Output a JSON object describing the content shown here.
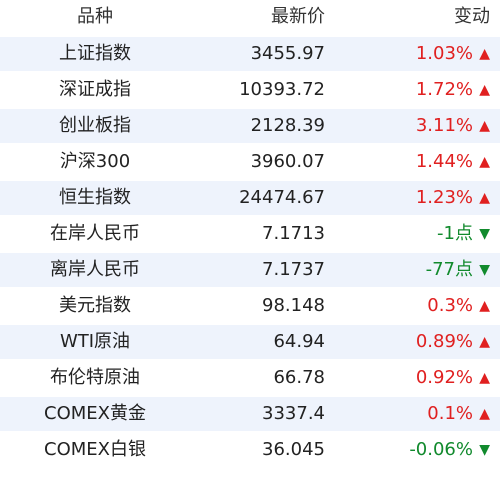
{
  "table": {
    "header": [
      "品种",
      "最新价",
      "变动"
    ],
    "rows": [
      [
        "上证指数",
        "3455.97",
        "1.03%",
        "▲"
      ],
      [
        "深证成指",
        "10393.72",
        "1.72%",
        "▲"
      ],
      [
        "创业板指",
        "2128.39",
        "3.11%",
        "▲"
      ],
      [
        "沪深300",
        "3960.07",
        "1.44%",
        "▲"
      ],
      [
        "恒生指数",
        "24474.67",
        "1.23%",
        "▲"
      ],
      [
        "在岸人民币",
        "7.1713",
        "-1点",
        "▼"
      ],
      [
        "离岸人民币",
        "7.1737",
        "-77点",
        "▼"
      ],
      [
        "美元指数",
        "98.148",
        "0.3%",
        "▲"
      ],
      [
        "WTI原油",
        "64.94",
        "0.89%",
        "▲"
      ],
      [
        "布伦特原油",
        "66.78",
        "0.92%",
        "▲"
      ],
      [
        "COMEX黄金",
        "3337.4",
        "0.1%",
        "▲"
      ],
      [
        "COMEX白银",
        "36.045",
        "-0.06%",
        "▼"
      ]
    ]
  }
}
